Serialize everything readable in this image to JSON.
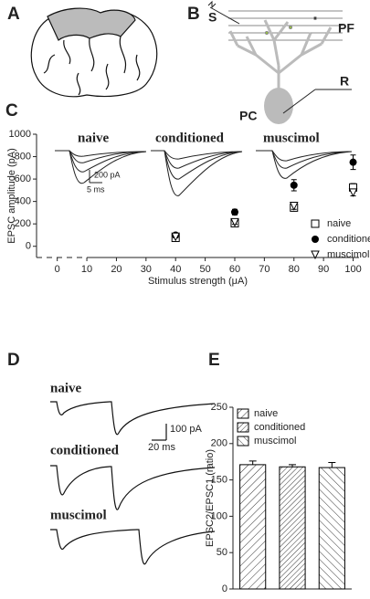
{
  "panels": {
    "labels": [
      "A",
      "B",
      "C",
      "D",
      "E"
    ],
    "diagram": {
      "stimulus": "S",
      "fibers": "PF",
      "cell": "PC",
      "recording": "R"
    },
    "scale_bars": {
      "c": [
        "200 pA",
        "5 ms"
      ],
      "d": [
        "100 pA",
        "20 ms"
      ]
    }
  },
  "chart_data": [
    {
      "type": "scatter",
      "xlabel": "Stimulus strength (μA)",
      "ylabel": "EPSC amplitude (pA)",
      "xlim": [
        -7,
        102
      ],
      "xticks": [
        0,
        10,
        20,
        30,
        40,
        50,
        60,
        70,
        80,
        90,
        100
      ],
      "ylim": [
        -100,
        1000
      ],
      "yticks": [
        0,
        200,
        400,
        600,
        800,
        1000
      ],
      "x": [
        40,
        60,
        80,
        100
      ],
      "series": [
        {
          "name": "naive",
          "marker": "square-open",
          "color": "#000000",
          "values": [
            75,
            205,
            345,
            525
          ],
          "errors": [
            12,
            20,
            30,
            35
          ]
        },
        {
          "name": "conditioned",
          "marker": "circle",
          "color": "#000000",
          "values": [
            100,
            305,
            545,
            750
          ],
          "errors": [
            10,
            25,
            50,
            65
          ]
        },
        {
          "name": "muscimol",
          "marker": "triangle-down-open",
          "color": "#000000",
          "values": [
            85,
            215,
            360,
            480
          ],
          "errors": [
            10,
            20,
            30,
            30
          ]
        }
      ]
    },
    {
      "type": "bar",
      "ylabel": "EPSC2/EPSC1 (ratio)",
      "ylim": [
        0,
        250
      ],
      "yticks": [
        0,
        50,
        100,
        150,
        200,
        250
      ],
      "series": [
        {
          "name": "naive",
          "pattern": "hatch-wide",
          "color": "#000000",
          "values": [
            171
          ],
          "errors": [
            5
          ]
        },
        {
          "name": "conditioned",
          "pattern": "hatch-dense",
          "color": "#000000",
          "values": [
            168
          ],
          "errors": [
            3
          ]
        },
        {
          "name": "muscimol",
          "pattern": "hatch-back",
          "color": "#000000",
          "values": [
            167
          ],
          "errors": [
            7
          ]
        }
      ]
    }
  ]
}
